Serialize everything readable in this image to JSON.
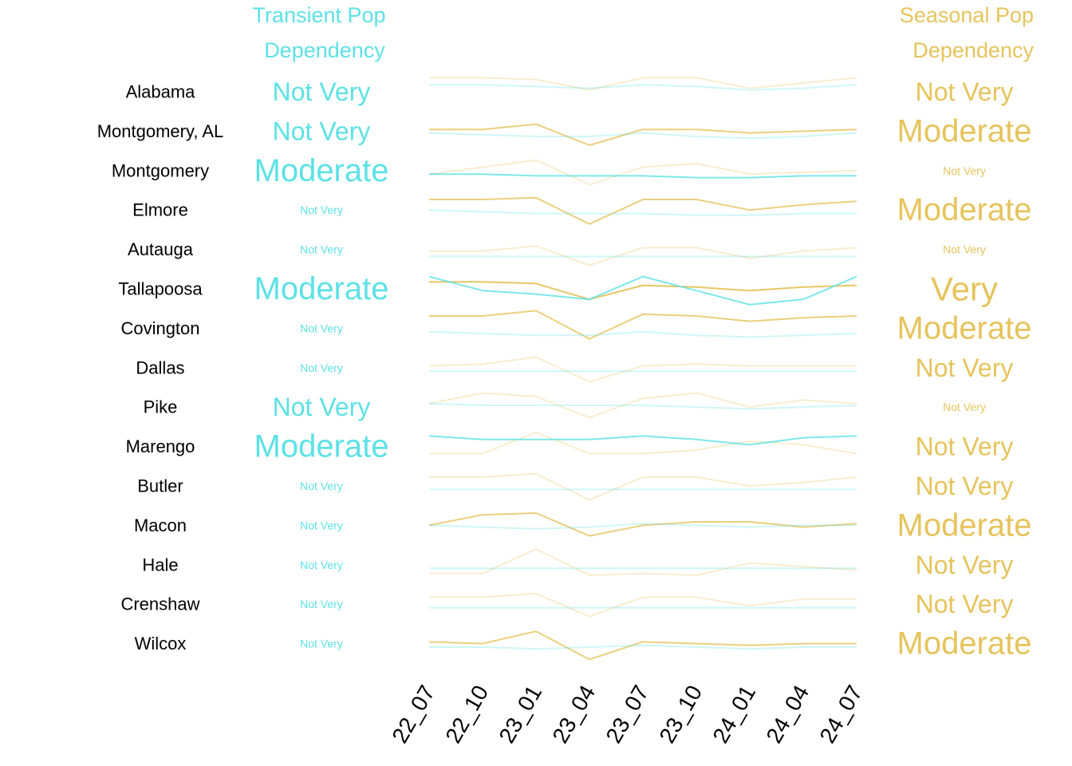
{
  "chart_data": {
    "type": "line",
    "left_header": [
      "Transient Pop",
      "Dependency"
    ],
    "right_header": [
      "Seasonal Pop",
      "Dependency"
    ],
    "x": [
      "22_07",
      "22_10",
      "23_01",
      "23_04",
      "23_07",
      "23_10",
      "24_01",
      "24_04",
      "24_07"
    ],
    "colors": {
      "transient": "#5ce1e6",
      "seasonal": "#e6c35c",
      "region_label": "#000000"
    },
    "regions": [
      {
        "name": "Alabama",
        "transient": "Not Very",
        "seasonal": "Not Very",
        "seasonal_values": [
          0.9,
          0.9,
          0.85,
          0.55,
          0.9,
          0.9,
          0.6,
          0.75,
          0.9
        ],
        "transient_values": [
          0.7,
          0.7,
          0.65,
          0.6,
          0.7,
          0.65,
          0.55,
          0.6,
          0.7
        ]
      },
      {
        "name": "Montgomery, AL",
        "transient": "Not Very",
        "seasonal": "Moderate",
        "seasonal_values": [
          0.55,
          0.55,
          0.7,
          0.1,
          0.55,
          0.55,
          0.45,
          0.5,
          0.55
        ],
        "transient_values": [
          0.45,
          0.4,
          0.35,
          0.35,
          0.45,
          0.35,
          0.3,
          0.35,
          0.45
        ]
      },
      {
        "name": "Montgomery",
        "transient": "Moderate",
        "seasonal": "Not Very",
        "seasonal_values": [
          0.4,
          0.6,
          0.8,
          0.1,
          0.6,
          0.7,
          0.4,
          0.45,
          0.5
        ],
        "transient_values": [
          0.4,
          0.4,
          0.35,
          0.35,
          0.35,
          0.3,
          0.3,
          0.35,
          0.35
        ]
      },
      {
        "name": "Elmore",
        "transient": "Not Very",
        "seasonal": "Moderate",
        "seasonal_values": [
          0.8,
          0.8,
          0.85,
          0.1,
          0.8,
          0.8,
          0.5,
          0.65,
          0.75
        ],
        "transient_values": [
          0.5,
          0.45,
          0.4,
          0.4,
          0.4,
          0.35,
          0.35,
          0.4,
          0.4
        ]
      },
      {
        "name": "Autauga",
        "transient": "Not Very",
        "seasonal": "Not Very",
        "seasonal_values": [
          0.45,
          0.45,
          0.6,
          0.05,
          0.55,
          0.55,
          0.25,
          0.45,
          0.55
        ],
        "transient_values": [
          0.3,
          0.3,
          0.3,
          0.3,
          0.3,
          0.3,
          0.3,
          0.3,
          0.3
        ]
      },
      {
        "name": "Tallapoosa",
        "transient": "Moderate",
        "seasonal": "Very",
        "seasonal_values": [
          0.7,
          0.7,
          0.65,
          0.2,
          0.6,
          0.55,
          0.45,
          0.55,
          0.6
        ],
        "transient_values": [
          0.85,
          0.45,
          0.35,
          0.2,
          0.85,
          0.45,
          0.05,
          0.2,
          0.85
        ]
      },
      {
        "name": "Covington",
        "transient": "Not Very",
        "seasonal": "Moderate",
        "seasonal_values": [
          0.85,
          0.85,
          1.0,
          0.2,
          0.9,
          0.85,
          0.7,
          0.8,
          0.85
        ],
        "transient_values": [
          0.4,
          0.35,
          0.3,
          0.3,
          0.4,
          0.3,
          0.25,
          0.3,
          0.35
        ]
      },
      {
        "name": "Dallas",
        "transient": "Not Very",
        "seasonal": "Not Very",
        "seasonal_values": [
          0.55,
          0.6,
          0.8,
          0.1,
          0.55,
          0.6,
          0.55,
          0.55,
          0.55
        ],
        "transient_values": [
          0.4,
          0.4,
          0.4,
          0.4,
          0.4,
          0.4,
          0.4,
          0.4,
          0.4
        ]
      },
      {
        "name": "Pike",
        "transient": "Not Very",
        "seasonal": "Not Very",
        "seasonal_values": [
          0.6,
          0.9,
          0.8,
          0.2,
          0.75,
          0.9,
          0.5,
          0.7,
          0.6
        ],
        "transient_values": [
          0.6,
          0.55,
          0.55,
          0.55,
          0.55,
          0.5,
          0.45,
          0.5,
          0.55
        ]
      },
      {
        "name": "Marengo",
        "transient": "Moderate",
        "seasonal": "Not Very",
        "seasonal_values": [
          0.3,
          0.3,
          0.9,
          0.3,
          0.3,
          0.4,
          0.65,
          0.55,
          0.3
        ],
        "transient_values": [
          0.8,
          0.7,
          0.7,
          0.7,
          0.8,
          0.7,
          0.55,
          0.75,
          0.8
        ]
      },
      {
        "name": "Butler",
        "transient": "Not Very",
        "seasonal": "Not Very",
        "seasonal_values": [
          0.75,
          0.75,
          0.85,
          0.1,
          0.75,
          0.75,
          0.5,
          0.6,
          0.75
        ],
        "transient_values": [
          0.4,
          0.4,
          0.4,
          0.4,
          0.4,
          0.4,
          0.4,
          0.4,
          0.4
        ]
      },
      {
        "name": "Macon",
        "transient": "Not Very",
        "seasonal": "Moderate",
        "seasonal_values": [
          0.5,
          0.8,
          0.85,
          0.2,
          0.5,
          0.6,
          0.6,
          0.45,
          0.55
        ],
        "transient_values": [
          0.5,
          0.45,
          0.4,
          0.45,
          0.55,
          0.5,
          0.45,
          0.5,
          0.5
        ]
      },
      {
        "name": "Hale",
        "transient": "Not Very",
        "seasonal": "Not Very",
        "seasonal_values": [
          0.25,
          0.25,
          0.95,
          0.2,
          0.25,
          0.2,
          0.55,
          0.45,
          0.35
        ],
        "transient_values": [
          0.4,
          0.4,
          0.4,
          0.4,
          0.4,
          0.4,
          0.4,
          0.4,
          0.4
        ]
      },
      {
        "name": "Crenshaw",
        "transient": "Not Very",
        "seasonal": "Not Very",
        "seasonal_values": [
          0.7,
          0.7,
          0.8,
          0.15,
          0.7,
          0.7,
          0.45,
          0.65,
          0.65
        ],
        "transient_values": [
          0.4,
          0.4,
          0.4,
          0.4,
          0.4,
          0.4,
          0.4,
          0.4,
          0.4
        ]
      },
      {
        "name": "Wilcox",
        "transient": "Not Very",
        "seasonal": "Moderate",
        "seasonal_values": [
          0.55,
          0.5,
          0.85,
          0.05,
          0.55,
          0.5,
          0.45,
          0.5,
          0.5
        ],
        "transient_values": [
          0.4,
          0.4,
          0.35,
          0.4,
          0.45,
          0.4,
          0.35,
          0.4,
          0.4
        ]
      }
    ]
  }
}
